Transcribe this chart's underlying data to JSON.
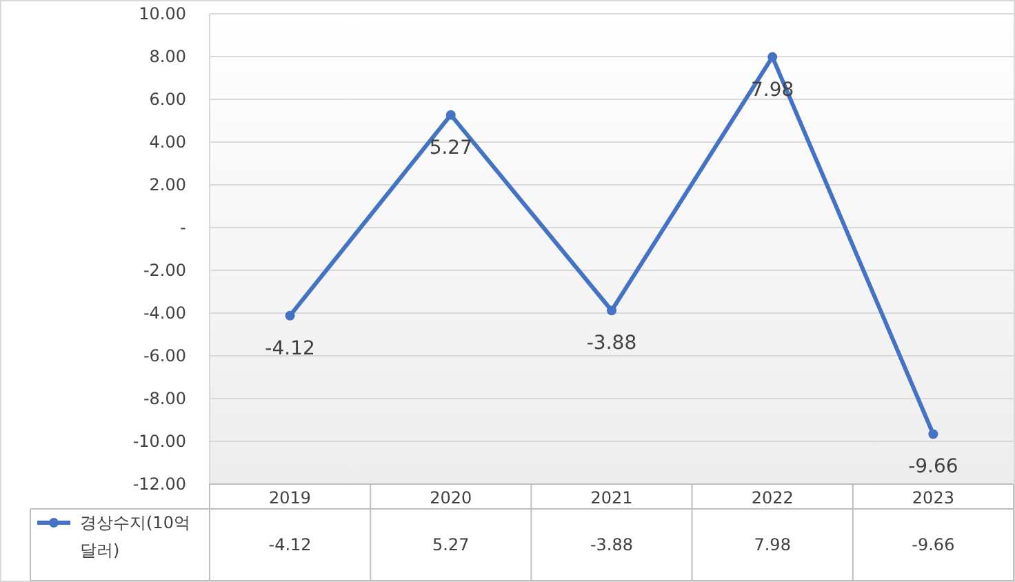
{
  "chart_data": {
    "type": "line",
    "categories": [
      "2019",
      "2020",
      "2021",
      "2022",
      "2023"
    ],
    "series": [
      {
        "name": "경상수지(10억 달러)",
        "color": "#4472c4",
        "values": [
          -4.12,
          5.27,
          -3.88,
          7.98,
          -9.66
        ],
        "value_labels": [
          "-4.12",
          "5.27",
          "-3.88",
          "7.98",
          "-9.66"
        ]
      }
    ],
    "ylim": [
      -12,
      10
    ],
    "yticks": [
      {
        "value": 10,
        "label": "10.00"
      },
      {
        "value": 8,
        "label": "8.00"
      },
      {
        "value": 6,
        "label": "6.00"
      },
      {
        "value": 4,
        "label": "4.00"
      },
      {
        "value": 2,
        "label": "2.00"
      },
      {
        "value": 0,
        "label": "-"
      },
      {
        "value": -2,
        "label": "-2.00"
      },
      {
        "value": -4,
        "label": "-4.00"
      },
      {
        "value": -6,
        "label": "-6.00"
      },
      {
        "value": -8,
        "label": "-8.00"
      },
      {
        "value": -10,
        "label": "-10.00"
      },
      {
        "value": -12,
        "label": "-12.00"
      }
    ],
    "grid": "y",
    "data_labels": true,
    "marker": "circle",
    "legend": "bottom",
    "line_style": "solid"
  }
}
